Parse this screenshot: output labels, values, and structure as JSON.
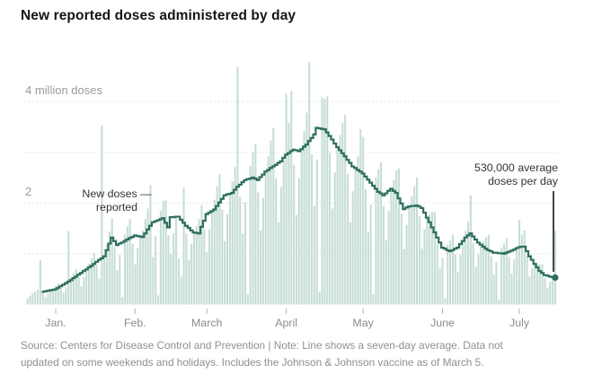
{
  "title": "New reported doses administered by day",
  "y_axis": {
    "label_4m": "4 million doses",
    "label_2m": "2"
  },
  "annotations": {
    "new_doses": {
      "line1": "New doses —",
      "line2": "reported"
    },
    "avg": {
      "line1": "530,000 average",
      "line2": "doses per day"
    }
  },
  "source_note": {
    "line1": "Source: Centers for Disease Control and Prevention | Note: Line shows a seven-day average. Data not",
    "line2": "updated on some weekends and holidays. Includes the Johnson & Johnson vaccine as of March 5."
  },
  "chart_data": {
    "type": "bar",
    "subtype": "daily-bars-with-step-average-line",
    "title": "New reported doses administered by day",
    "unit": "million doses",
    "start_date": "2020-12-21",
    "end_date": "2021-07-15",
    "x_tick_labels": [
      "Jan.",
      "Feb.",
      "March",
      "April",
      "May",
      "June",
      "July"
    ],
    "x_tick_day_index": [
      11,
      42,
      70,
      101,
      131,
      162,
      192
    ],
    "y_gridline_values": [
      1,
      2,
      3,
      4
    ],
    "y_gridline_labeled": {
      "4": "4 million doses",
      "2": "2"
    },
    "ylim": [
      0,
      4.9
    ],
    "grid": "dashed-horizontal",
    "legend_position": "none",
    "bar_series_name": "New doses reported",
    "line_series_name": "Seven-day average",
    "end_value_millions": 0.53,
    "end_value_label": "530,000 average doses per day",
    "colors": {
      "bar": "#c7ded4",
      "line": "#2c6e60",
      "pointer": "#444444",
      "gridline": "#dcdcdc",
      "tick": "#b3b3b3",
      "axis_text": "#8c8c8c"
    },
    "bars_daily_millions": [
      0.12,
      0.17,
      0.22,
      0.25,
      0.29,
      0.87,
      0.22,
      0.15,
      0.22,
      0.28,
      0.32,
      0.36,
      0.42,
      0.32,
      0.23,
      0.34,
      1.45,
      0.53,
      0.62,
      0.7,
      0.53,
      0.36,
      0.54,
      0.69,
      0.8,
      0.91,
      1.02,
      0.76,
      0.51,
      3.52,
      0.95,
      1.18,
      1.44,
      1.69,
      1.13,
      0.68,
      0.98,
      0.15,
      1.38,
      1.54,
      1.68,
      1.2,
      0.79,
      1.11,
      1.34,
      1.46,
      1.68,
      1.89,
      2.35,
      0.94,
      1.34,
      0.18,
      1.85,
      2.04,
      2.06,
      1.37,
      1.0,
      1.41,
      1.73,
      0.9,
      0.55,
      2.3,
      1.4,
      0.88,
      1.2,
      1.42,
      1.55,
      1.68,
      1.96,
      1.49,
      1.03,
      1.48,
      1.84,
      2.06,
      2.33,
      2.57,
      1.87,
      1.25,
      1.78,
      2.18,
      2.42,
      2.71,
      4.68,
      2.12,
      1.4,
      2.01,
      0.2,
      2.73,
      3.0,
      3.17,
      2.21,
      1.46,
      2.1,
      2.62,
      2.92,
      3.23,
      3.48,
      2.48,
      1.62,
      2.31,
      2.89,
      4.15,
      3.58,
      4.2,
      2.75,
      1.76,
      2.48,
      3.06,
      3.42,
      3.78,
      4.78,
      2.95,
      1.94,
      2.85,
      0.25,
      4.08,
      4.05,
      4.1,
      2.99,
      1.89,
      2.6,
      3.1,
      3.34,
      3.58,
      3.74,
      2.57,
      1.62,
      2.23,
      2.69,
      2.92,
      3.45,
      3.3,
      2.27,
      1.43,
      1.97,
      0.2,
      2.51,
      2.66,
      2.8,
      1.94,
      1.27,
      1.84,
      2.28,
      2.46,
      2.64,
      2.68,
      1.79,
      1.09,
      1.57,
      1.93,
      2.13,
      2.33,
      2.5,
      1.74,
      1.1,
      1.48,
      1.71,
      1.78,
      1.82,
      1.82,
      1.19,
      0.71,
      0.92,
      0.12,
      1.18,
      1.26,
      1.37,
      0.99,
      0.65,
      0.98,
      1.25,
      1.45,
      1.63,
      2.15,
      1.21,
      0.74,
      1.0,
      1.18,
      1.25,
      1.32,
      1.37,
      0.95,
      0.59,
      0.84,
      0.1,
      1.11,
      1.2,
      1.31,
      0.94,
      0.61,
      0.89,
      1.11,
      1.67,
      1.37,
      1.46,
      0.95,
      0.55,
      0.72,
      0.8,
      0.8,
      0.79,
      0.79,
      0.52,
      0.33,
      0.45,
      0.54,
      1.45
    ],
    "avg_line_millions": [
      null,
      null,
      null,
      null,
      null,
      null,
      0.25,
      0.26,
      0.27,
      0.28,
      0.29,
      0.3,
      0.33,
      0.36,
      0.39,
      0.42,
      0.45,
      0.48,
      0.52,
      0.55,
      0.59,
      0.62,
      0.66,
      0.69,
      0.73,
      0.76,
      0.8,
      0.84,
      0.88,
      0.91,
      0.95,
      1.07,
      1.2,
      1.32,
      1.25,
      1.17,
      1.2,
      1.22,
      1.25,
      1.28,
      1.31,
      1.33,
      1.36,
      1.35,
      1.34,
      1.33,
      1.4,
      1.48,
      1.55,
      1.62,
      1.64,
      1.66,
      1.68,
      1.7,
      1.61,
      1.52,
      1.72,
      1.72,
      1.73,
      1.73,
      1.67,
      1.61,
      1.55,
      1.51,
      1.46,
      1.42,
      1.41,
      1.4,
      1.53,
      1.65,
      1.78,
      1.81,
      1.84,
      1.87,
      1.94,
      2.01,
      2.08,
      2.15,
      2.17,
      2.18,
      2.2,
      2.26,
      2.32,
      2.36,
      2.41,
      2.45,
      2.47,
      2.48,
      2.5,
      2.48,
      2.45,
      2.51,
      2.56,
      2.62,
      2.65,
      2.69,
      2.72,
      2.75,
      2.79,
      2.82,
      2.89,
      2.95,
      2.98,
      3.02,
      3.05,
      3.04,
      3.02,
      3.06,
      3.11,
      3.15,
      3.22,
      3.28,
      3.35,
      3.48,
      3.47,
      3.46,
      3.45,
      3.39,
      3.32,
      3.25,
      3.17,
      3.1,
      3.04,
      2.98,
      2.92,
      2.85,
      2.79,
      2.72,
      2.69,
      2.65,
      2.62,
      2.58,
      2.52,
      2.46,
      2.4,
      2.34,
      2.28,
      2.22,
      2.19,
      2.15,
      2.19,
      2.24,
      2.28,
      2.24,
      2.2,
      2.09,
      1.99,
      1.88,
      1.91,
      1.93,
      1.94,
      1.94,
      1.95,
      1.93,
      1.9,
      1.81,
      1.71,
      1.62,
      1.52,
      1.42,
      1.32,
      1.22,
      1.12,
      1.1,
      1.07,
      1.05,
      1.07,
      1.1,
      1.12,
      1.19,
      1.25,
      1.32,
      1.36,
      1.4,
      1.34,
      1.28,
      1.22,
      1.18,
      1.14,
      1.1,
      1.07,
      1.05,
      1.02,
      1.02,
      1.01,
      1.01,
      1.0,
      1.02,
      1.04,
      1.06,
      1.08,
      1.11,
      1.13,
      1.14,
      1.14,
      1.05,
      0.95,
      0.88,
      0.8,
      0.73,
      0.66,
      0.62,
      0.58,
      0.57,
      0.55,
      0.54,
      0.53
    ]
  }
}
